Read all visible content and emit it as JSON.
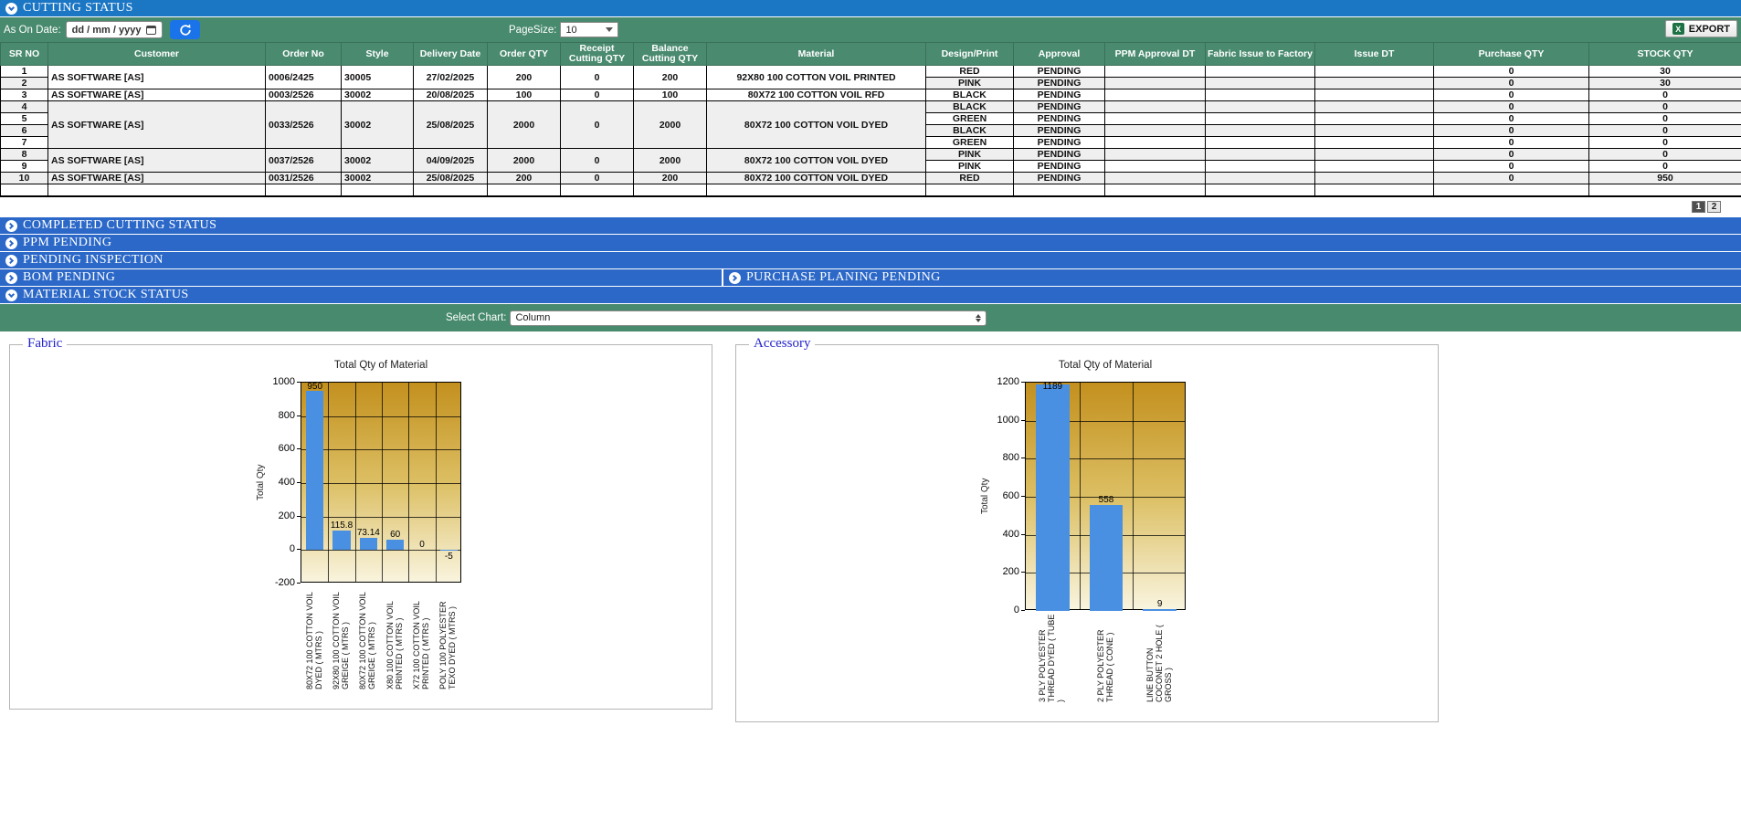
{
  "sections": {
    "cutting_status": {
      "label": "CUTTING STATUS",
      "state": "expanded"
    },
    "completed_cutting_status": {
      "label": "COMPLETED CUTTING STATUS",
      "state": "collapsed"
    },
    "ppm_pending": {
      "label": "PPM PENDING",
      "state": "collapsed"
    },
    "pending_inspection": {
      "label": "PENDING INSPECTION",
      "state": "collapsed"
    },
    "bom_pending": {
      "label": "BOM PENDING",
      "state": "collapsed"
    },
    "purchase_planning_pending": {
      "label": "PURCHASE PLANING PENDING",
      "state": "collapsed"
    },
    "material_stock_status": {
      "label": "MATERIAL STOCK STATUS",
      "state": "expanded"
    }
  },
  "toolbar": {
    "as_on_date_label": "As On Date:",
    "date_placeholder": "dd / mm / yyyy",
    "pagesize_label": "PageSize:",
    "pagesize_value": "10",
    "export_label": "EXPORT"
  },
  "table": {
    "headers": [
      "SR NO",
      "Customer",
      "Order No",
      "Style",
      "Delivery Date",
      "Order QTY",
      "Receipt Cutting QTY",
      "Balance Cutting QTY",
      "Material",
      "Design/Print",
      "Approval",
      "PPM Approval DT",
      "Fabric Issue to Factory",
      "Issue DT",
      "Purchase QTY",
      "STOCK QTY"
    ],
    "groups": [
      {
        "customer": "AS SOFTWARE [AS]",
        "order_no": "0006/2425",
        "style": "30005",
        "delivery_date": "27/02/2025",
        "order_qty": "200",
        "receipt_qty": "0",
        "balance_qty": "200",
        "material": "92X80 100 COTTON VOIL PRINTED",
        "rows": [
          {
            "sr": "1",
            "design": "RED",
            "approval": "PENDING",
            "ppm_dt": "",
            "fabric_issue": "",
            "issue_dt": "",
            "purchase_qty": "0",
            "stock_qty": "30"
          },
          {
            "sr": "2",
            "design": "PINK",
            "approval": "PENDING",
            "ppm_dt": "",
            "fabric_issue": "",
            "issue_dt": "",
            "purchase_qty": "0",
            "stock_qty": "30"
          }
        ]
      },
      {
        "customer": "AS SOFTWARE [AS]",
        "order_no": "0003/2526",
        "style": "30002",
        "delivery_date": "20/08/2025",
        "order_qty": "100",
        "receipt_qty": "0",
        "balance_qty": "100",
        "material": "80X72 100 COTTON VOIL RFD",
        "rows": [
          {
            "sr": "3",
            "design": "BLACK",
            "approval": "PENDING",
            "ppm_dt": "",
            "fabric_issue": "",
            "issue_dt": "",
            "purchase_qty": "0",
            "stock_qty": "0"
          }
        ]
      },
      {
        "customer": "AS SOFTWARE [AS]",
        "order_no": "0033/2526",
        "style": "30002",
        "delivery_date": "25/08/2025",
        "order_qty": "2000",
        "receipt_qty": "0",
        "balance_qty": "2000",
        "material": "80X72 100 COTTON VOIL DYED",
        "rows": [
          {
            "sr": "4",
            "design": "BLACK",
            "approval": "PENDING",
            "ppm_dt": "",
            "fabric_issue": "",
            "issue_dt": "",
            "purchase_qty": "0",
            "stock_qty": "0"
          },
          {
            "sr": "5",
            "design": "GREEN",
            "approval": "PENDING",
            "ppm_dt": "",
            "fabric_issue": "",
            "issue_dt": "",
            "purchase_qty": "0",
            "stock_qty": "0"
          },
          {
            "sr": "6",
            "design": "BLACK",
            "approval": "PENDING",
            "ppm_dt": "",
            "fabric_issue": "",
            "issue_dt": "",
            "purchase_qty": "0",
            "stock_qty": "0"
          },
          {
            "sr": "7",
            "design": "GREEN",
            "approval": "PENDING",
            "ppm_dt": "",
            "fabric_issue": "",
            "issue_dt": "",
            "purchase_qty": "0",
            "stock_qty": "0"
          }
        ]
      },
      {
        "customer": "AS SOFTWARE [AS]",
        "order_no": "0037/2526",
        "style": "30002",
        "delivery_date": "04/09/2025",
        "order_qty": "2000",
        "receipt_qty": "0",
        "balance_qty": "2000",
        "material": "80X72 100 COTTON VOIL DYED",
        "rows": [
          {
            "sr": "8",
            "design": "PINK",
            "approval": "PENDING",
            "ppm_dt": "",
            "fabric_issue": "",
            "issue_dt": "",
            "purchase_qty": "0",
            "stock_qty": "0"
          },
          {
            "sr": "9",
            "design": "PINK",
            "approval": "PENDING",
            "ppm_dt": "",
            "fabric_issue": "",
            "issue_dt": "",
            "purchase_qty": "0",
            "stock_qty": "0"
          }
        ]
      },
      {
        "customer": "AS SOFTWARE [AS]",
        "order_no": "0031/2526",
        "style": "30002",
        "delivery_date": "25/08/2025",
        "order_qty": "200",
        "receipt_qty": "0",
        "balance_qty": "200",
        "material": "80X72 100 COTTON VOIL DYED",
        "rows": [
          {
            "sr": "10",
            "design": "RED",
            "approval": "PENDING",
            "ppm_dt": "",
            "fabric_issue": "",
            "issue_dt": "",
            "purchase_qty": "0",
            "stock_qty": "950"
          }
        ]
      }
    ],
    "has_empty_footer_row": true,
    "pagination": [
      {
        "label": "1",
        "active": true
      },
      {
        "label": "2",
        "active": false
      }
    ]
  },
  "chart_select": {
    "label": "Select Chart:",
    "value": "Column"
  },
  "panels": [
    {
      "title": "Fabric"
    },
    {
      "title": "Accessory"
    }
  ],
  "chart_data": [
    {
      "type": "bar",
      "panel": "Fabric",
      "title": "Total Qty of Material",
      "xlabel": "",
      "ylabel": "Total Qty",
      "ylim": [
        -200,
        1000
      ],
      "ytick_step": 200,
      "yticks": [
        1000,
        800,
        600,
        400,
        200,
        0,
        -200
      ],
      "grid": true,
      "legend": "none",
      "categories": [
        "80X72 100 COTTON VOIL DYED ( MTRS )",
        "92X80 100 COTTON VOIL GREIGE ( MTRS )",
        "80X72 100 COTTON VOIL GREIGE ( MTRS )",
        "X80 100 COTTON VOIL PRINTED ( MTRS )",
        "X72 100 COTTON VOIL PRINTED ( MTRS )",
        "POLY 100 POLYESTER TEXO DYED ( MTRS )"
      ],
      "values": [
        950,
        115.8,
        73.14,
        60,
        0,
        -5
      ],
      "value_labels": [
        "950",
        "115.8",
        "73.14",
        "60",
        "0",
        "-5"
      ],
      "bar_color": "#4a90e2"
    },
    {
      "type": "bar",
      "panel": "Accessory",
      "title": "Total Qty of Material",
      "xlabel": "",
      "ylabel": "Total Qty",
      "ylim": [
        0,
        1200
      ],
      "ytick_step": 200,
      "yticks": [
        1200,
        1000,
        800,
        600,
        400,
        200,
        0
      ],
      "grid": true,
      "legend": "none",
      "categories": [
        "3 PLY POLYESTER THREAD DYED ( TUBE )",
        "2 PLY POLYESTER THREAD ( CONE )",
        "LINE BUTTON COCONET 2 HOLE ( GROSS )"
      ],
      "values": [
        1189,
        558,
        9
      ],
      "value_labels": [
        "1189",
        "558",
        "9"
      ],
      "bar_color": "#4a90e2"
    }
  ],
  "colors": {
    "top_bar_blue": "#1b76c4",
    "accordion_blue": "#2b68c8",
    "toolbar_green": "#488a6e",
    "header_green": "#4a8b70",
    "row_stripe": "#efefef",
    "bar_blue": "#4a90e2",
    "plot_gradient_top": "#c3901e",
    "plot_gradient_bottom": "#f9f4de",
    "active_page_bg": "#4f4f4f"
  }
}
